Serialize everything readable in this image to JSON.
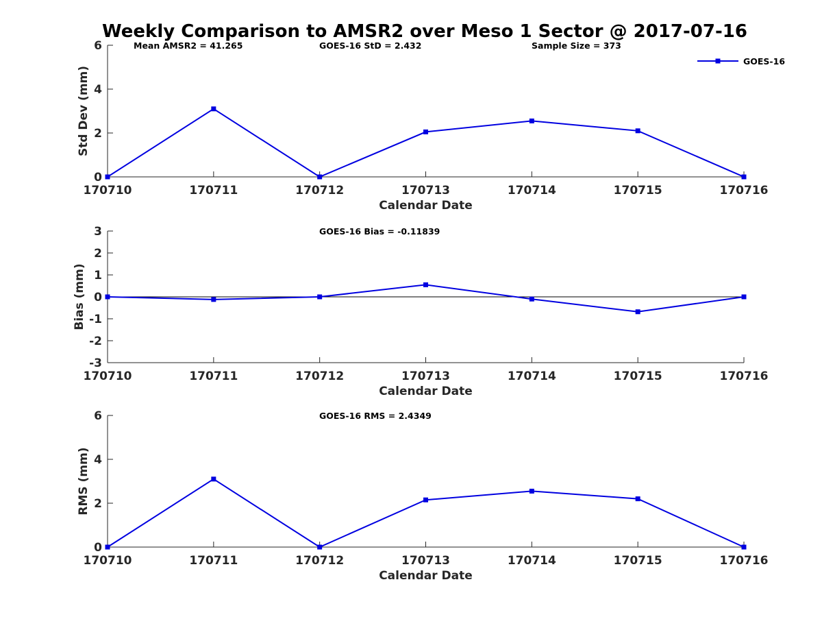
{
  "title": "Weekly Comparison to AMSR2 over Meso 1 Sector @ 2017-07-16",
  "colors": {
    "series": "#0000e0",
    "axis": "#262626",
    "zero_line": "#000000"
  },
  "legend": {
    "label": "GOES-16",
    "placement": "top-right"
  },
  "chart_data": [
    {
      "type": "line",
      "title": "Weekly Comparison to AMSR2 over Meso 1 Sector @ 2017-07-16",
      "categories": [
        "170710",
        "170711",
        "170712",
        "170713",
        "170714",
        "170715",
        "170716"
      ],
      "series": [
        {
          "name": "GOES-16",
          "values": [
            0,
            3.1,
            0,
            2.05,
            2.55,
            2.1,
            0
          ]
        }
      ],
      "xlabel": "Calendar Date",
      "ylabel": "Std Dev (mm)",
      "ylim": [
        0,
        6
      ],
      "yticks": [
        0,
        2,
        4,
        6
      ],
      "zero_line": false,
      "annotations": [
        "Mean AMSR2 = 41.265",
        "GOES-16 StD = 2.432",
        "Sample Size = 373"
      ]
    },
    {
      "type": "line",
      "categories": [
        "170710",
        "170711",
        "170712",
        "170713",
        "170714",
        "170715",
        "170716"
      ],
      "series": [
        {
          "name": "GOES-16",
          "values": [
            0,
            -0.12,
            0,
            0.55,
            -0.1,
            -0.68,
            0
          ]
        }
      ],
      "xlabel": "Calendar Date",
      "ylabel": "Bias (mm)",
      "ylim": [
        -3,
        3
      ],
      "yticks": [
        -3,
        -2,
        -1,
        0,
        1,
        2,
        3
      ],
      "zero_line": true,
      "annotations": [
        "GOES-16 Bias  = -0.11839"
      ]
    },
    {
      "type": "line",
      "categories": [
        "170710",
        "170711",
        "170712",
        "170713",
        "170714",
        "170715",
        "170716"
      ],
      "series": [
        {
          "name": "GOES-16",
          "values": [
            0,
            3.1,
            0,
            2.15,
            2.55,
            2.2,
            0
          ]
        }
      ],
      "xlabel": "Calendar Date",
      "ylabel": "RMS (mm)",
      "ylim": [
        0,
        6
      ],
      "yticks": [
        0,
        2,
        4,
        6
      ],
      "zero_line": false,
      "annotations": [
        "GOES-16 RMS = 2.4349"
      ]
    }
  ]
}
